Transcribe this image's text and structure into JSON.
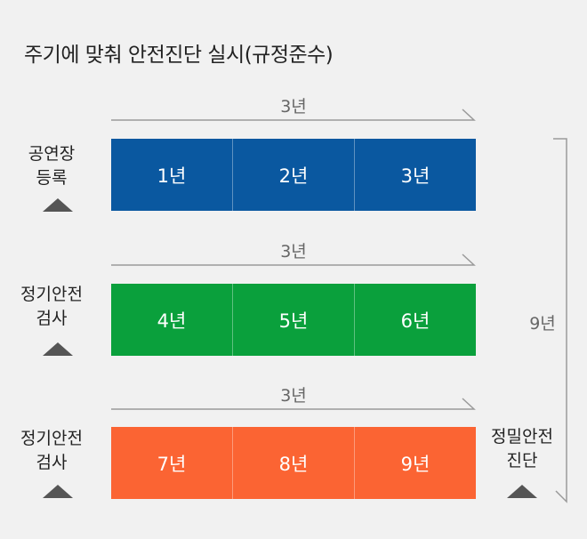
{
  "title": "주기에 맞춰 안전진단 실시(규정준수)",
  "colors": {
    "blue": "#0a58a0",
    "green": "#0aa03c",
    "orange": "#fb6433"
  },
  "rows": [
    {
      "label_line1": "공연장",
      "label_line2": "등록",
      "span": "3년",
      "color": "blue",
      "cells": [
        "1년",
        "2년",
        "3년"
      ]
    },
    {
      "label_line1": "정기안전",
      "label_line2": "검사",
      "span": "3년",
      "color": "green",
      "cells": [
        "4년",
        "5년",
        "6년"
      ]
    },
    {
      "label_line1": "정기안전",
      "label_line2": "검사",
      "span": "3년",
      "color": "orange",
      "cells": [
        "7년",
        "8년",
        "9년"
      ]
    }
  ],
  "total_span": "9년",
  "final": {
    "label_line1": "정밀안전",
    "label_line2": "진단"
  }
}
